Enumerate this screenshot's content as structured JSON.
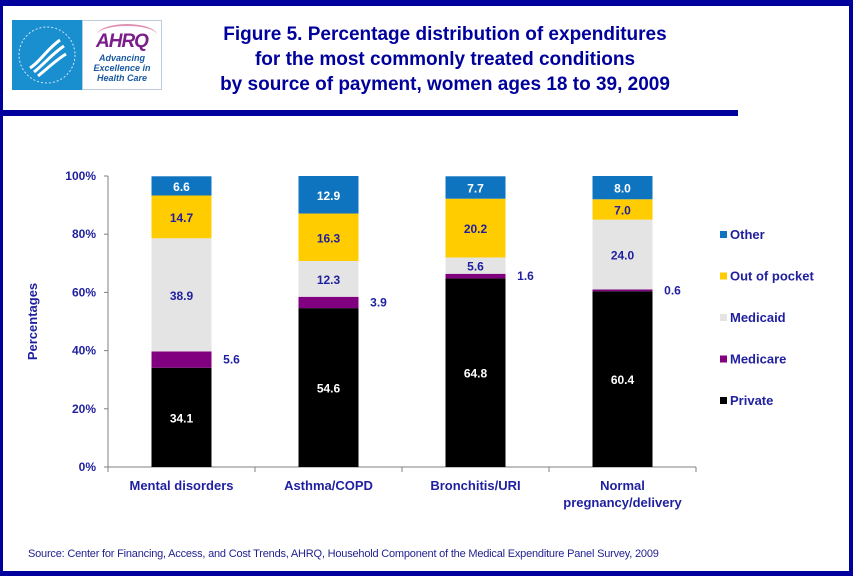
{
  "logo": {
    "hhs_alt": "Department of Health & Human Services USA seal",
    "ahrq_wordmark": "AHRQ",
    "ahrq_tagline_lines": [
      "Advancing",
      "Excellence in",
      "Health Care"
    ]
  },
  "title_lines": [
    "Figure 5. Percentage distribution of expenditures",
    "for the most commonly treated conditions",
    "by source of payment, women ages 18 to 39, 2009"
  ],
  "source": "Source: Center for Financing, Access, and Cost Trends, AHRQ, Household Component of the Medical Expenditure Panel Survey,  2009",
  "chart_data": {
    "type": "bar",
    "stacked": true,
    "percent_stacked": true,
    "title": "Figure 5. Percentage distribution of expenditures for the most commonly treated conditions by source of payment, women ages 18 to 39, 2009",
    "xlabel": "",
    "ylabel": "Percentages",
    "ylim": [
      0,
      100
    ],
    "yticks": [
      "0%",
      "20%",
      "40%",
      "60%",
      "80%",
      "100%"
    ],
    "grid": false,
    "legend_position": "right",
    "categories": [
      [
        "Mental disorders"
      ],
      [
        "Asthma/COPD"
      ],
      [
        "Bronchitis/URI"
      ],
      [
        "Normal",
        "pregnancy/delivery"
      ]
    ],
    "series": [
      {
        "name": "Private",
        "color": "#000000",
        "label_color": "#ffffff",
        "values": [
          34.1,
          54.6,
          64.8,
          60.4
        ]
      },
      {
        "name": "Medicare",
        "color": "#800080",
        "label_color": "#1f1f9f",
        "label_outside": true,
        "values": [
          5.6,
          3.9,
          1.6,
          0.6
        ]
      },
      {
        "name": "Medicaid",
        "color": "#e4e4e4",
        "label_color": "#1f1f9f",
        "values": [
          38.9,
          12.3,
          5.6,
          24.0
        ]
      },
      {
        "name": "Out of pocket",
        "color": "#ffcc00",
        "label_color": "#1f1f9f",
        "values": [
          14.7,
          16.3,
          20.2,
          7.0
        ]
      },
      {
        "name": "Other",
        "color": "#0f74c0",
        "label_color": "#ffffff",
        "values": [
          6.6,
          12.9,
          7.7,
          8.0
        ]
      }
    ],
    "legend_order": [
      "Other",
      "Out of pocket",
      "Medicaid",
      "Medicare",
      "Private"
    ]
  }
}
